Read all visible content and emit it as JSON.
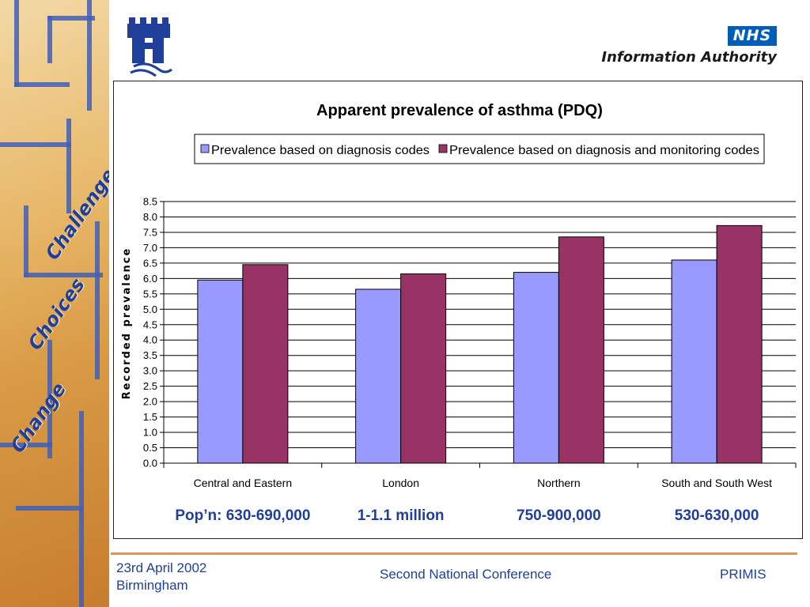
{
  "art": {
    "words": [
      "Challenge",
      "Choices",
      "Change"
    ]
  },
  "header": {
    "nhs": "NHS",
    "authority": "Information Authority"
  },
  "chart_data": {
    "type": "bar",
    "title": "Apparent prevalence of asthma (PDQ)",
    "ylabel": "Recorded prevalence",
    "xlabel": "",
    "ylim": [
      0,
      8.5
    ],
    "yticks": [
      "0.0",
      "0.5",
      "1.0",
      "1.5",
      "2.0",
      "2.5",
      "3.0",
      "3.5",
      "4.0",
      "4.5",
      "5.0",
      "5.5",
      "6.0",
      "6.5",
      "7.0",
      "7.5",
      "8.0",
      "8.5"
    ],
    "grid": true,
    "legend": "top",
    "categories": [
      "Central and Eastern",
      "London",
      "Northern",
      "South and South West"
    ],
    "series": [
      {
        "name": "Prevalence based on diagnosis codes",
        "color": "#9999ff",
        "values": [
          5.95,
          5.65,
          6.2,
          6.6
        ]
      },
      {
        "name": "Prevalence based on diagnosis and monitoring codes",
        "color": "#993366",
        "values": [
          6.45,
          6.15,
          7.35,
          7.72
        ]
      }
    ],
    "population_labels": [
      "Pop’n: 630-690,000",
      "1-1.1 million",
      "750-900,000",
      "530-630,000"
    ]
  },
  "footer": {
    "date": "23rd April 2002",
    "place": "Birmingham",
    "conference": "Second National Conference",
    "org": "PRIMIS"
  }
}
